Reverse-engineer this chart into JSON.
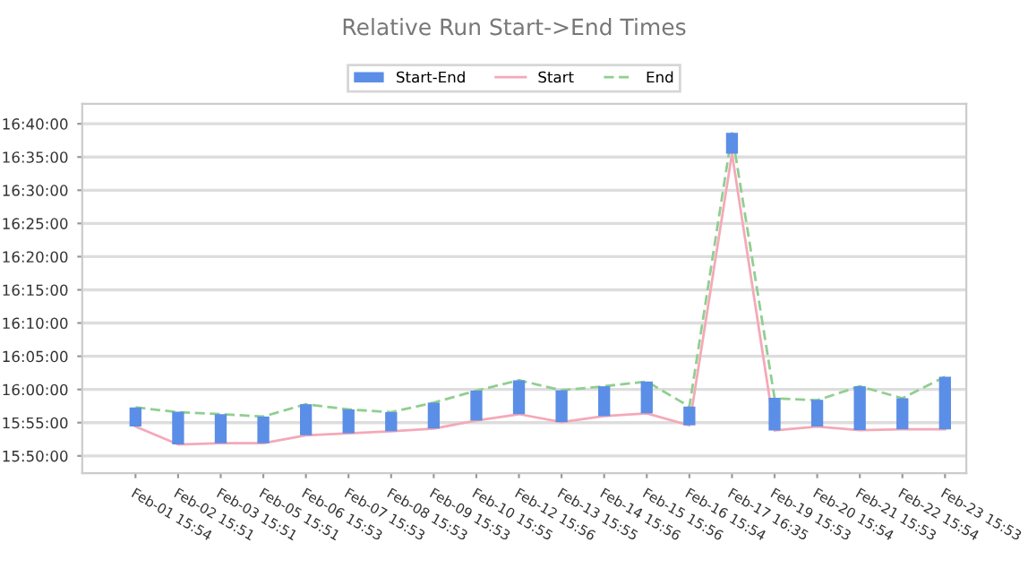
{
  "chart_data": {
    "type": "bar",
    "title": "Relative Run Start->End Times",
    "categories": [
      "Feb-01 15:54",
      "Feb-02 15:51",
      "Feb-03 15:51",
      "Feb-05 15:51",
      "Feb-06 15:53",
      "Feb-07 15:53",
      "Feb-08 15:53",
      "Feb-09 15:53",
      "Feb-10 15:55",
      "Feb-12 15:56",
      "Feb-13 15:55",
      "Feb-14 15:56",
      "Feb-15 15:56",
      "Feb-16 15:54",
      "Feb-17 16:35",
      "Feb-19 15:53",
      "Feb-20 15:54",
      "Feb-21 15:53",
      "Feb-22 15:54",
      "Feb-23 15:53"
    ],
    "series": [
      {
        "name": "Start-End",
        "color": "#5b8ee6",
        "base": [
          15.907,
          15.862,
          15.865,
          15.865,
          15.885,
          15.89,
          15.895,
          15.902,
          15.922,
          15.938,
          15.918,
          15.933,
          15.94,
          15.91,
          16.592,
          15.897,
          15.907,
          15.898,
          15.9,
          15.9
        ],
        "values": [
          0.048,
          0.082,
          0.073,
          0.067,
          0.078,
          0.06,
          0.048,
          0.065,
          0.075,
          0.085,
          0.08,
          0.075,
          0.08,
          0.047,
          0.052,
          0.082,
          0.067,
          0.11,
          0.078,
          0.132
        ]
      },
      {
        "name": "Start",
        "type": "line",
        "color": "#f4a9b8",
        "line_style": "solid",
        "values": [
          15.907,
          15.862,
          15.865,
          15.865,
          15.885,
          15.89,
          15.895,
          15.902,
          15.922,
          15.938,
          15.918,
          15.933,
          15.94,
          15.91,
          16.592,
          15.897,
          15.907,
          15.898,
          15.9,
          15.9
        ]
      },
      {
        "name": "End",
        "type": "line",
        "color": "#8fcf8f",
        "line_style": "dashed",
        "values": [
          15.955,
          15.943,
          15.938,
          15.932,
          15.963,
          15.95,
          15.943,
          15.967,
          15.997,
          16.023,
          15.998,
          16.008,
          16.02,
          15.957,
          16.643,
          15.978,
          15.973,
          16.008,
          15.978,
          16.032
        ]
      }
    ],
    "ylim": [
      15.79,
      16.7167
    ],
    "yticks": [
      {
        "value": 15.8333,
        "label": "15:50:00"
      },
      {
        "value": 15.9167,
        "label": "15:55:00"
      },
      {
        "value": 16.0,
        "label": "16:00:00"
      },
      {
        "value": 16.0833,
        "label": "16:05:00"
      },
      {
        "value": 16.1667,
        "label": "16:10:00"
      },
      {
        "value": 16.25,
        "label": "16:15:00"
      },
      {
        "value": 16.3333,
        "label": "16:20:00"
      },
      {
        "value": 16.4167,
        "label": "16:25:00"
      },
      {
        "value": 16.5,
        "label": "16:30:00"
      },
      {
        "value": 16.5833,
        "label": "16:35:00"
      },
      {
        "value": 16.6667,
        "label": "16:40:00"
      }
    ],
    "grid": "y",
    "legend": "top",
    "marker": "none"
  }
}
